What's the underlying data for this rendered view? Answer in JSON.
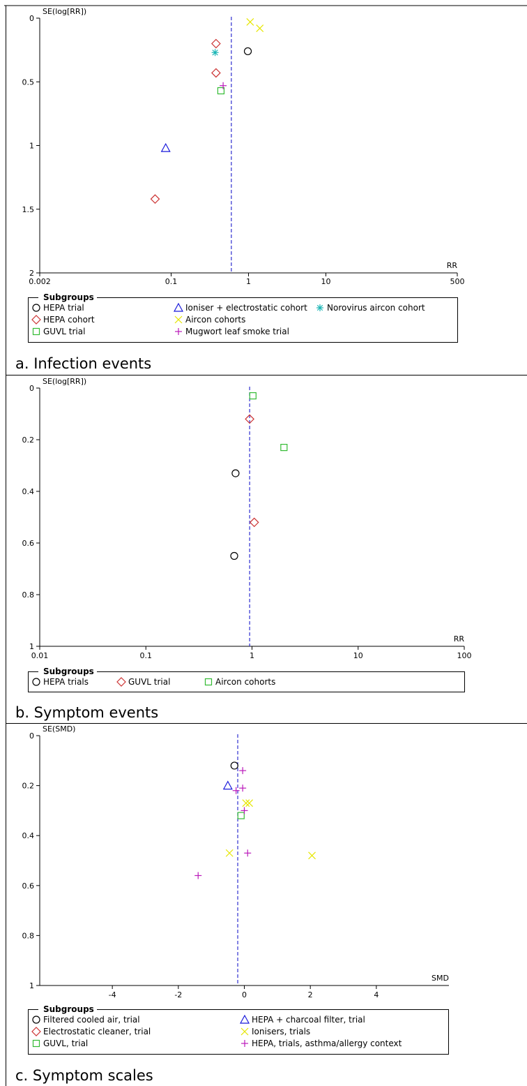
{
  "colors": {
    "black": "#000000",
    "red": "#cc3333",
    "blue": "#1a1adb",
    "teal": "#19b5b5",
    "yellow": "#e6e600",
    "green": "#33bb33",
    "magenta": "#bb1abb",
    "dashed_line": "#1a1acc"
  },
  "chart_data": [
    {
      "type": "scatter",
      "subtype": "funnel plot",
      "caption": "a. Infection events",
      "ylabel": "SE(log[RR])",
      "xlabel": "RR",
      "x_scale": "log",
      "xlim": [
        0.002,
        500
      ],
      "x_ticks": [
        "0.002",
        "0.1",
        "1",
        "10",
        "500"
      ],
      "ylim": [
        0,
        2
      ],
      "y_reversed": true,
      "y_ticks": [
        "0",
        "0.5",
        "1",
        "1.5",
        "2"
      ],
      "pooled_estimate": 0.6,
      "legend_title": "Subgroups",
      "legend_columns": 3,
      "legend": [
        {
          "label": "HEPA trial",
          "symbol": "circle",
          "color": "black"
        },
        {
          "label": "HEPA cohort",
          "symbol": "diamond",
          "color": "red"
        },
        {
          "label": "GUVL trial",
          "symbol": "square",
          "color": "green"
        },
        {
          "label": "Ioniser + electrostatic cohort",
          "symbol": "triangle",
          "color": "blue"
        },
        {
          "label": "Aircon cohorts",
          "symbol": "x",
          "color": "yellow"
        },
        {
          "label": "Mugwort leaf smoke trial",
          "symbol": "plus",
          "color": "magenta"
        },
        {
          "label": "Norovirus aircon cohort",
          "symbol": "star",
          "color": "teal"
        }
      ],
      "series": [
        {
          "name": "HEPA trial",
          "points": [
            {
              "x": 0.98,
              "y": 0.26
            }
          ]
        },
        {
          "name": "HEPA cohort",
          "points": [
            {
              "x": 0.38,
              "y": 0.2
            },
            {
              "x": 0.38,
              "y": 0.43
            },
            {
              "x": 0.062,
              "y": 1.42
            }
          ]
        },
        {
          "name": "GUVL trial",
          "points": [
            {
              "x": 0.44,
              "y": 0.57
            }
          ]
        },
        {
          "name": "Ioniser + electrostatic cohort",
          "points": [
            {
              "x": 0.085,
              "y": 1.02
            }
          ]
        },
        {
          "name": "Aircon cohorts",
          "points": [
            {
              "x": 1.05,
              "y": 0.03
            },
            {
              "x": 1.4,
              "y": 0.08
            }
          ]
        },
        {
          "name": "Mugwort leaf smoke trial",
          "points": [
            {
              "x": 0.47,
              "y": 0.53
            }
          ]
        },
        {
          "name": "Norovirus aircon cohort",
          "points": [
            {
              "x": 0.37,
              "y": 0.27
            }
          ]
        }
      ]
    },
    {
      "type": "scatter",
      "subtype": "funnel plot",
      "caption": "b. Symptom events",
      "ylabel": "SE(log[RR])",
      "xlabel": "RR",
      "x_scale": "log",
      "xlim": [
        0.01,
        100
      ],
      "x_ticks": [
        "0.01",
        "0.1",
        "1",
        "10",
        "100"
      ],
      "ylim": [
        0,
        1
      ],
      "y_reversed": true,
      "y_ticks": [
        "0",
        "0.2",
        "0.4",
        "0.6",
        "0.8",
        "1"
      ],
      "pooled_estimate": 0.95,
      "legend_title": "Subgroups",
      "legend_columns": 3,
      "legend": [
        {
          "label": "HEPA trials",
          "symbol": "circle",
          "color": "black"
        },
        {
          "label": "GUVL trial",
          "symbol": "diamond",
          "color": "red"
        },
        {
          "label": "Aircon cohorts",
          "symbol": "square",
          "color": "green"
        }
      ],
      "series": [
        {
          "name": "HEPA trials",
          "points": [
            {
              "x": 0.7,
              "y": 0.33
            },
            {
              "x": 0.68,
              "y": 0.65
            }
          ]
        },
        {
          "name": "GUVL trial",
          "points": [
            {
              "x": 0.95,
              "y": 0.12
            },
            {
              "x": 1.05,
              "y": 0.52
            }
          ]
        },
        {
          "name": "Aircon cohorts",
          "points": [
            {
              "x": 1.02,
              "y": 0.03
            },
            {
              "x": 2.0,
              "y": 0.23
            }
          ]
        }
      ]
    },
    {
      "type": "scatter",
      "subtype": "funnel plot",
      "caption": "c. Symptom scales",
      "ylabel": "SE(SMD)",
      "xlabel": "SMD",
      "x_scale": "linear",
      "xlim": [
        -6.2,
        6.2
      ],
      "x_ticks": [
        "-4",
        "-2",
        "0",
        "2",
        "4"
      ],
      "ylim": [
        0,
        1
      ],
      "y_reversed": true,
      "y_ticks": [
        "0",
        "0.2",
        "0.4",
        "0.6",
        "0.8",
        "1"
      ],
      "pooled_estimate": -0.2,
      "legend_title": "Subgroups",
      "legend_columns": 2,
      "legend": [
        {
          "label": "Filtered cooled air, trial",
          "symbol": "circle",
          "color": "black"
        },
        {
          "label": "Electrostatic cleaner, trial",
          "symbol": "diamond",
          "color": "red"
        },
        {
          "label": "GUVL, trial",
          "symbol": "square",
          "color": "green"
        },
        {
          "label": "HEPA + charcoal filter, trial",
          "symbol": "triangle",
          "color": "blue"
        },
        {
          "label": "Ionisers, trials",
          "symbol": "x",
          "color": "yellow"
        },
        {
          "label": "HEPA, trials, asthma/allergy context",
          "symbol": "plus",
          "color": "magenta"
        }
      ],
      "series": [
        {
          "name": "Filtered cooled air, trial",
          "points": [
            {
              "x": -0.3,
              "y": 0.12
            }
          ]
        },
        {
          "name": "HEPA + charcoal filter, trial",
          "points": [
            {
              "x": -0.5,
              "y": 0.2
            }
          ]
        },
        {
          "name": "GUVL, trial",
          "points": [
            {
              "x": -0.1,
              "y": 0.32
            }
          ]
        },
        {
          "name": "Ionisers, trials",
          "points": [
            {
              "x": 0.05,
              "y": 0.27
            },
            {
              "x": 0.15,
              "y": 0.27
            },
            {
              "x": -0.45,
              "y": 0.47
            },
            {
              "x": 2.05,
              "y": 0.48
            }
          ]
        },
        {
          "name": "HEPA, trials, asthma/allergy context",
          "points": [
            {
              "x": -0.05,
              "y": 0.14
            },
            {
              "x": -0.05,
              "y": 0.21
            },
            {
              "x": -0.25,
              "y": 0.22
            },
            {
              "x": 0.0,
              "y": 0.3
            },
            {
              "x": 0.1,
              "y": 0.47
            },
            {
              "x": -1.4,
              "y": 0.56
            }
          ]
        }
      ]
    }
  ]
}
